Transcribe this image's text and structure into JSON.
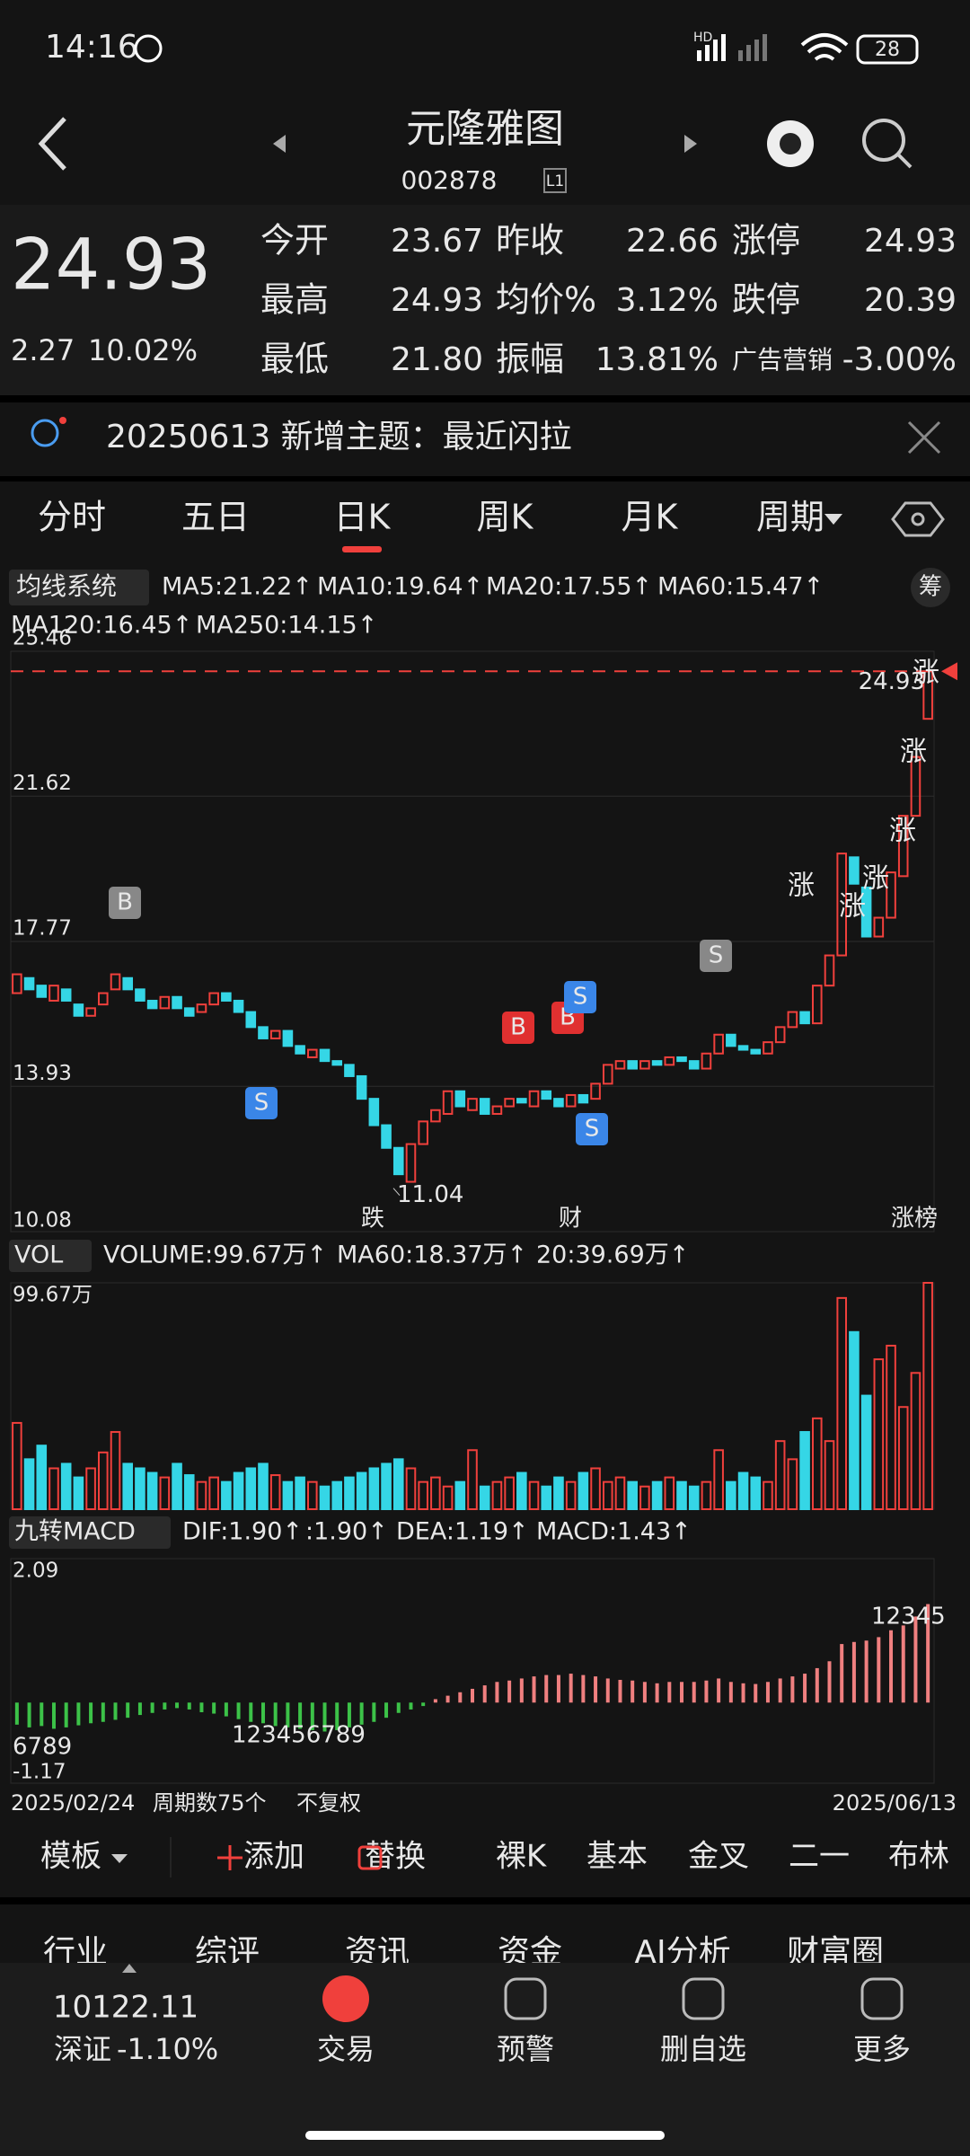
{
  "status_bar": {
    "time": "14:16",
    "network": "HD",
    "battery": "28"
  },
  "header": {
    "title": "元隆雅图",
    "code": "002878",
    "badge": "L1"
  },
  "quote": {
    "price": "24.93",
    "change": "2.27",
    "change_pct": "10.02%",
    "fields": [
      {
        "label": "今开",
        "value": "23.67",
        "color": "#f0403c"
      },
      {
        "label": "昨收",
        "value": "22.66",
        "color": "#e8e8e8"
      },
      {
        "label": "涨停",
        "value": "24.93",
        "color": "#f0403c"
      },
      {
        "label": "最高",
        "value": "24.93",
        "color": "#f0403c"
      },
      {
        "label": "均价%",
        "value": "3.12%",
        "color": "#f0403c"
      },
      {
        "label": "跌停",
        "value": "20.39",
        "color": "#2ec55a"
      },
      {
        "label": "最低",
        "value": "21.80",
        "color": "#2ec55a"
      },
      {
        "label": "振幅",
        "value": "13.81%",
        "color": "#e8e8e8"
      },
      {
        "label": "广告营销",
        "value": "-3.00%",
        "color": "#2ec55a"
      }
    ]
  },
  "notice": {
    "text": "20250613 新增主题：最近闪拉"
  },
  "period_tabs": {
    "items": [
      "分时",
      "五日",
      "日K",
      "周K",
      "月K",
      "周期"
    ],
    "active": 2
  },
  "ma_legend": {
    "selector": "均线系统",
    "chip_button": "筹",
    "items": [
      {
        "text": "MA5:21.22↑",
        "color": "#ffffff"
      },
      {
        "text": "MA10:19.64↑",
        "color": "#f5e342"
      },
      {
        "text": "MA20:17.55↑",
        "color": "#d63fd6"
      },
      {
        "text": "MA60:15.47↑",
        "color": "#3cc248"
      },
      {
        "text": "MA120:16.45↑",
        "color": "#33c8e8"
      },
      {
        "text": "MA250:14.15↑",
        "color": "#3c8cf0"
      }
    ]
  },
  "chart_data": [
    {
      "type": "candlestick",
      "up_color": "#f0403c",
      "down_color": "#35d6e6",
      "open": [
        16.4,
        16.8,
        16.6,
        16.2,
        16.5,
        16.1,
        15.8,
        16.1,
        16.5,
        16.8,
        16.5,
        16.2,
        16.0,
        16.3,
        16.0,
        15.9,
        16.1,
        16.4,
        16.2,
        15.9,
        15.5,
        15.2,
        15.4,
        15.0,
        14.7,
        14.9,
        14.6,
        14.5,
        14.2,
        13.6,
        12.9,
        12.3,
        11.4,
        12.4,
        13.0,
        13.2,
        13.8,
        13.3,
        13.6,
        13.2,
        13.4,
        13.6,
        13.4,
        13.8,
        13.6,
        13.4,
        13.7,
        13.6,
        14.0,
        14.4,
        14.6,
        14.4,
        14.6,
        14.5,
        14.7,
        14.6,
        14.4,
        14.8,
        15.3,
        15.0,
        14.9,
        14.8,
        15.1,
        15.5,
        15.9,
        15.6,
        16.6,
        17.4,
        20.0,
        19.2,
        17.9,
        18.4,
        19.5,
        21.1,
        23.67
      ],
      "close": [
        16.9,
        16.5,
        16.3,
        16.6,
        16.2,
        15.8,
        16.0,
        16.4,
        16.9,
        16.5,
        16.2,
        16.0,
        16.3,
        16.0,
        15.8,
        16.1,
        16.4,
        16.2,
        15.9,
        15.5,
        15.2,
        15.4,
        15.0,
        14.8,
        14.9,
        14.6,
        14.5,
        14.2,
        13.6,
        12.9,
        12.3,
        11.6,
        12.4,
        13.0,
        13.3,
        13.8,
        13.4,
        13.6,
        13.2,
        13.4,
        13.6,
        13.5,
        13.8,
        13.6,
        13.4,
        13.7,
        13.5,
        14.0,
        14.5,
        14.6,
        14.4,
        14.6,
        14.5,
        14.7,
        14.6,
        14.4,
        14.8,
        15.3,
        15.0,
        14.9,
        14.8,
        15.1,
        15.5,
        15.9,
        15.6,
        16.6,
        17.4,
        20.1,
        19.3,
        17.9,
        18.4,
        19.6,
        21.1,
        22.66,
        24.93
      ],
      "ylim": [
        10.08,
        25.46
      ],
      "yticks": [
        25.46,
        21.62,
        17.77,
        13.93,
        10.08
      ],
      "grid": true,
      "price_line": 24.93,
      "low": 11.04,
      "signals": [
        "B",
        "S",
        "B",
        "B",
        "S",
        "S",
        "S"
      ],
      "limit_up_tags": [
        "涨",
        "涨",
        "涨",
        "涨",
        "涨",
        "涨"
      ],
      "tags": [
        "跌",
        "财",
        "涨榜"
      ]
    },
    {
      "type": "bar",
      "selector": "VOL",
      "legend": [
        {
          "text": "VOLUME:99.67万↑",
          "color": "#ffffff"
        },
        {
          "text": "MA60:18.37万↑",
          "color": "#f5e342"
        },
        {
          "text": "20:39.69万↑",
          "color": "#d63fd6"
        }
      ],
      "values": [
        38,
        22,
        28,
        18,
        20,
        14,
        18,
        25,
        34,
        20,
        18,
        16,
        14,
        20,
        15,
        12,
        14,
        12,
        16,
        18,
        20,
        15,
        12,
        14,
        12,
        10,
        12,
        14,
        16,
        18,
        20,
        22,
        18,
        12,
        14,
        10,
        12,
        26,
        10,
        12,
        14,
        16,
        12,
        10,
        14,
        12,
        16,
        18,
        12,
        14,
        12,
        10,
        12,
        14,
        12,
        10,
        12,
        26,
        12,
        16,
        14,
        12,
        30,
        22,
        34,
        40,
        30,
        93,
        78,
        50,
        66,
        72,
        45,
        60,
        99.67
      ],
      "ylim": [
        0,
        99.67
      ],
      "yticks": [
        {
          "value": 99.67,
          "label": "99.67万"
        }
      ]
    },
    {
      "type": "bar",
      "selector": "九转MACD",
      "up_color": "#f08080",
      "down_color": "#3cc248",
      "legend": [
        {
          "text": "DIF:1.90↑",
          "color": "#ffffff"
        },
        {
          "text": ":1.90↑",
          "color": "#f5e342"
        },
        {
          "text": "DEA:1.19↑",
          "color": "#d63fd6"
        },
        {
          "text": "MACD:1.43↑",
          "color": "#3cc248"
        }
      ],
      "values": [
        -0.32,
        -0.36,
        -0.34,
        -0.38,
        -0.36,
        -0.33,
        -0.3,
        -0.28,
        -0.25,
        -0.22,
        -0.18,
        -0.15,
        -0.1,
        -0.08,
        -0.1,
        -0.14,
        -0.16,
        -0.2,
        -0.24,
        -0.28,
        -0.3,
        -0.34,
        -0.36,
        -0.38,
        -0.4,
        -0.42,
        -0.4,
        -0.36,
        -0.32,
        -0.28,
        -0.22,
        -0.15,
        -0.1,
        -0.05,
        0.05,
        0.1,
        0.15,
        0.2,
        0.25,
        0.3,
        0.32,
        0.35,
        0.38,
        0.4,
        0.4,
        0.42,
        0.4,
        0.38,
        0.35,
        0.33,
        0.32,
        0.3,
        0.28,
        0.3,
        0.3,
        0.3,
        0.32,
        0.35,
        0.3,
        0.28,
        0.27,
        0.3,
        0.35,
        0.38,
        0.42,
        0.5,
        0.6,
        0.85,
        0.88,
        0.9,
        0.95,
        1.05,
        1.12,
        1.25,
        1.43
      ],
      "ylim": [
        -1.17,
        2.09
      ],
      "yticks": [
        2.09,
        -1.17
      ],
      "sequence_labels": [
        "6789",
        "123456789",
        "12345"
      ],
      "x_start": "2025/02/24",
      "x_end": "2025/06/13",
      "footer": [
        "周期数75个",
        "不复权"
      ]
    }
  ],
  "toolbar": {
    "items": [
      "模板",
      "添加",
      "替换",
      "裸K",
      "基本",
      "金叉",
      "二一",
      "布林"
    ],
    "active": 4
  },
  "sub_tabs": {
    "items": [
      "行业",
      "综评",
      "资讯",
      "资金",
      "AI分析",
      "财富圈"
    ],
    "active": 3
  },
  "bottom_nav": {
    "index_value": "10122.11",
    "index_name": "深证",
    "index_change": "-1.10%",
    "items": [
      "交易",
      "预警",
      "删自选",
      "更多"
    ],
    "active": 0
  }
}
